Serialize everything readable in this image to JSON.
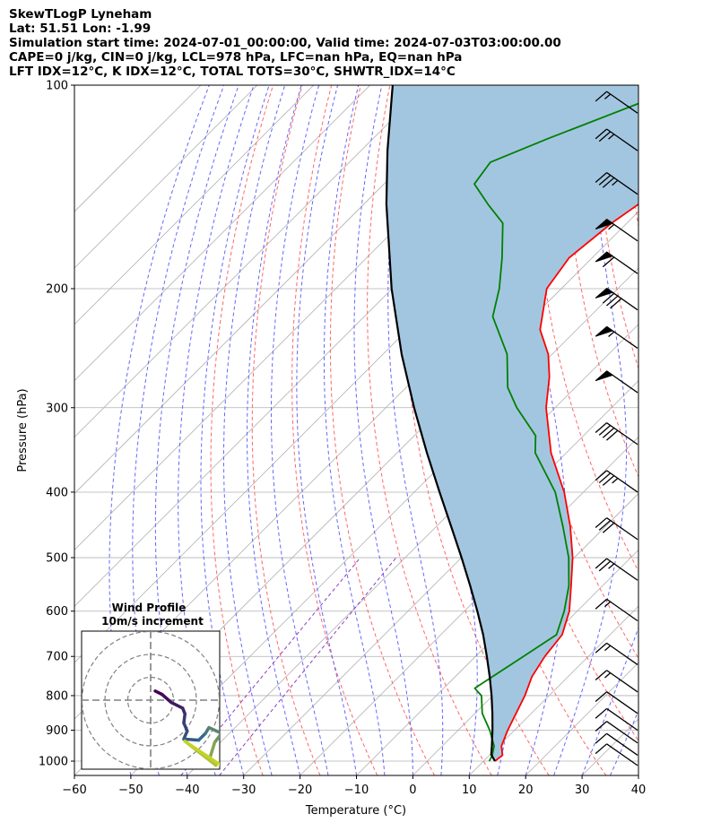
{
  "header": {
    "line1": "SkewTLogP Lyneham",
    "line2": "Lat: 51.51   Lon: -1.99",
    "line3": "Simulation start time: 2024-07-01_00:00:00, Valid time: 2024-07-03T03:00:00.00",
    "line4": "CAPE=0 j/kg, CIN=0 j/kg, LCL=978 hPa, LFC=nan hPa, EQ=nan hPa",
    "line5": "LFT IDX=12°C, K IDX=12°C, TOTAL TOTS=30°C, SHWTR_IDX=14°C"
  },
  "chart_data": {
    "type": "line",
    "title": "SkewTLogP Lyneham",
    "xlabel": "Temperature (°C)",
    "ylabel": "Pressure (hPa)",
    "xlim": [
      -60,
      40
    ],
    "ylim": [
      1050,
      100
    ],
    "y_scale": "log",
    "x_ticks": [
      "−60",
      "−50",
      "−40",
      "−30",
      "−20",
      "−10",
      "0",
      "10",
      "20",
      "30",
      "40"
    ],
    "y_ticks": [
      "100",
      "200",
      "300",
      "400",
      "500",
      "600",
      "700",
      "800",
      "900",
      "1000"
    ],
    "grid": true,
    "series": [
      {
        "name": "Temperature",
        "color": "#ff0000",
        "p": [
          1000,
          980,
          950,
          900,
          850,
          800,
          750,
          700,
          650,
          600,
          550,
          500,
          450,
          400,
          350,
          300,
          270,
          250,
          230,
          200,
          180,
          160,
          150,
          140,
          125,
          110,
          100
        ],
        "t": [
          12,
          12.3,
          10.5,
          8.8,
          7.3,
          5.7,
          3.6,
          2.3,
          1.5,
          -1.4,
          -5.6,
          -10.3,
          -16.2,
          -23.4,
          -32.7,
          -41.6,
          -46.5,
          -50.7,
          -56.5,
          -62.6,
          -64.1,
          -62.7,
          -61.3,
          -59.5,
          -56.8,
          -51.2,
          -49.3
        ]
      },
      {
        "name": "Dewpoint",
        "color": "#008000",
        "p": [
          1000,
          980,
          950,
          900,
          850,
          800,
          780,
          700,
          650,
          600,
          550,
          500,
          450,
          400,
          350,
          330,
          300,
          280,
          250,
          220,
          200,
          180,
          160,
          150,
          140,
          130,
          120,
          100
        ],
        "t": [
          11,
          10.5,
          9.2,
          5.6,
          1.3,
          -2.0,
          -4.5,
          -1.5,
          0.5,
          -2.3,
          -6.0,
          -11.0,
          -17.5,
          -25.0,
          -35.5,
          -38.5,
          -46.8,
          -52.0,
          -58.0,
          -67.2,
          -71.0,
          -76.0,
          -82.0,
          -88.0,
          -94.0,
          -95.0,
          -89.0,
          -74.0
        ]
      },
      {
        "name": "Parcel",
        "color": "#000000",
        "p": [
          1000,
          978,
          950,
          900,
          850,
          800,
          750,
          700,
          650,
          600,
          550,
          500,
          450,
          400,
          350,
          300,
          250,
          200,
          150,
          125,
          100
        ],
        "t": [
          12,
          10.2,
          8.8,
          6.1,
          3.1,
          -0.2,
          -3.9,
          -8.0,
          -12.5,
          -17.7,
          -23.5,
          -30.0,
          -37.3,
          -45.5,
          -54.7,
          -65.0,
          -76.7,
          -90.1,
          -106.0,
          -115.3,
          -126.0
        ]
      }
    ],
    "wind_barbs": [
      {
        "p": 110,
        "speed": 15
      },
      {
        "p": 125,
        "speed": 25
      },
      {
        "p": 145,
        "speed": 35
      },
      {
        "p": 170,
        "speed": 55
      },
      {
        "p": 190,
        "speed": 60
      },
      {
        "p": 215,
        "speed": 80
      },
      {
        "p": 245,
        "speed": 55
      },
      {
        "p": 285,
        "speed": 50
      },
      {
        "p": 340,
        "speed": 40
      },
      {
        "p": 400,
        "speed": 35
      },
      {
        "p": 470,
        "speed": 30
      },
      {
        "p": 540,
        "speed": 25
      },
      {
        "p": 620,
        "speed": 15
      },
      {
        "p": 720,
        "speed": 15
      },
      {
        "p": 790,
        "speed": 15
      },
      {
        "p": 850,
        "speed": 10
      },
      {
        "p": 900,
        "speed": 10
      },
      {
        "p": 940,
        "speed": 10
      },
      {
        "p": 980,
        "speed": 10
      },
      {
        "p": 1015,
        "speed": 10
      }
    ],
    "inset": {
      "title": "Wind Profile",
      "subtitle": "10m/s increment",
      "type": "hodograph",
      "points": [
        [
          0.2,
          0.4
        ],
        [
          0.5,
          0.25
        ],
        [
          0.9,
          -0.1
        ],
        [
          1.4,
          -0.35
        ],
        [
          1.5,
          -0.6
        ],
        [
          1.45,
          -1.0
        ],
        [
          1.6,
          -1.35
        ],
        [
          1.45,
          -1.7
        ],
        [
          2.1,
          -1.75
        ],
        [
          2.4,
          -1.45
        ],
        [
          2.55,
          -1.2
        ],
        [
          3.1,
          -1.45
        ],
        [
          2.8,
          -1.85
        ],
        [
          2.6,
          -2.5
        ],
        [
          2.85,
          -2.85
        ],
        [
          1.5,
          -1.8
        ],
        [
          3.0,
          -2.8
        ],
        [
          3.5,
          -3.1
        ]
      ],
      "color_start": "#440154",
      "color_mid": "#31688e",
      "color_end": "#d8e219"
    }
  },
  "styles": {
    "isotherm": "#b0b0b0",
    "dry_adiabat": "#ff6666",
    "moist_adiabat": "#6666ff",
    "mixing_ratio": "#8c3fbf",
    "cape_fill": "#a3c6e0"
  }
}
